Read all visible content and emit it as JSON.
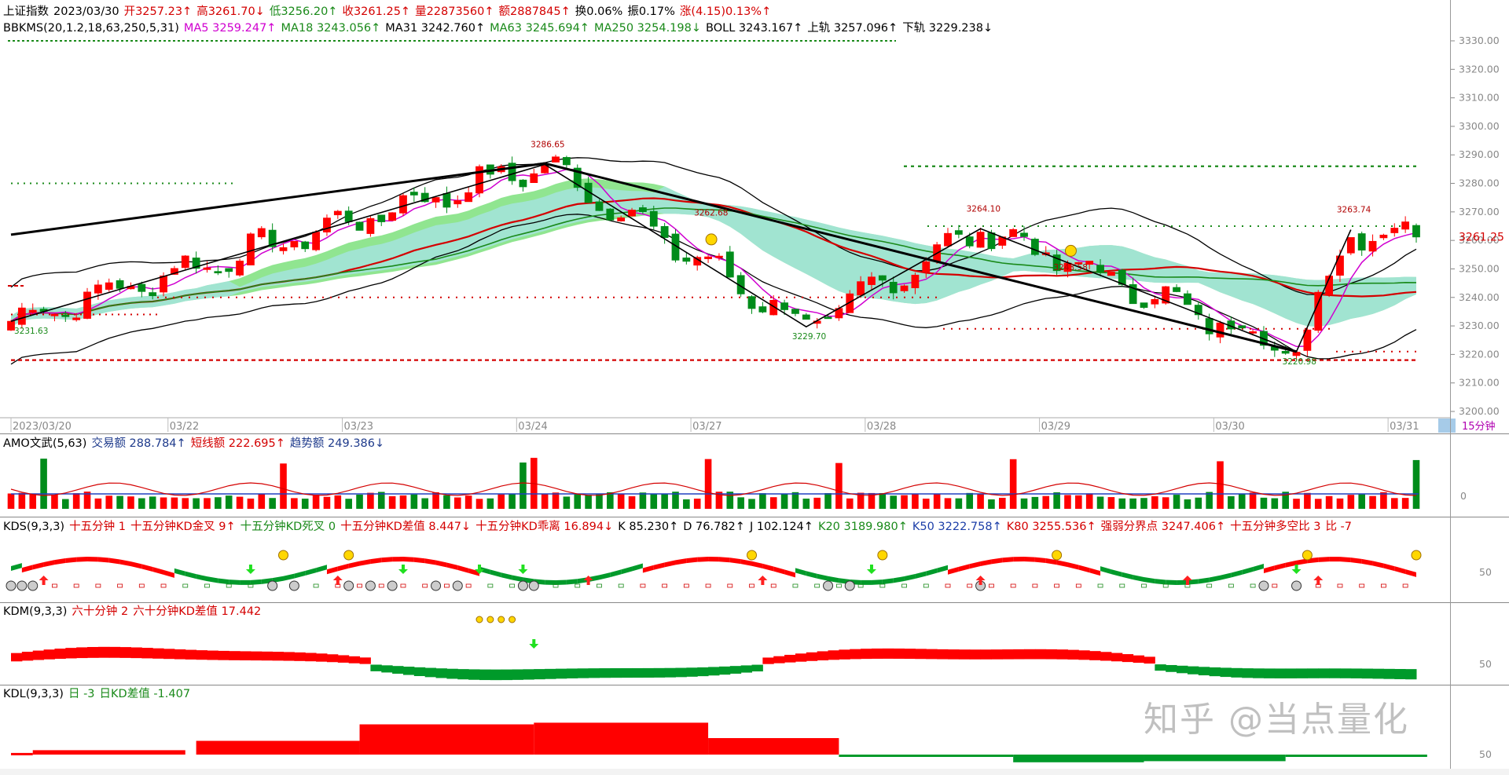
{
  "main_header": {
    "row1": [
      {
        "text": "上证指数",
        "color": "blk"
      },
      {
        "text": "2023/03/30",
        "color": "blk"
      },
      {
        "text": "开3257.23↑",
        "color": "red"
      },
      {
        "text": "高3261.70↓",
        "color": "red"
      },
      {
        "text": "低3256.20↑",
        "color": "green"
      },
      {
        "text": "收3261.25↑",
        "color": "red"
      },
      {
        "text": "量22873560↑",
        "color": "red"
      },
      {
        "text": "额2887845↑",
        "color": "red"
      },
      {
        "text": "换0.06%",
        "color": "blk"
      },
      {
        "text": "振0.17%",
        "color": "blk"
      },
      {
        "text": "涨(4.15)0.13%↑",
        "color": "red"
      }
    ],
    "row2": [
      {
        "text": "BBKMS(20,1.2,18,63,250,5,31)",
        "color": "blk"
      },
      {
        "text": "MA5 3259.247↑",
        "color": "mag"
      },
      {
        "text": "MA18 3243.056↑",
        "color": "green"
      },
      {
        "text": "MA31 3242.760↑",
        "color": "blk"
      },
      {
        "text": "MA63 3245.694↑",
        "color": "green"
      },
      {
        "text": "MA250 3254.198↓",
        "color": "green"
      },
      {
        "text": "BOLL 3243.167↑",
        "color": "blk"
      },
      {
        "text": "上轨 3257.096↑",
        "color": "blk"
      },
      {
        "text": "下轨 3229.238↓",
        "color": "blk"
      }
    ]
  },
  "amo_header": [
    {
      "text": "AMO文武(5,63)",
      "color": "blk"
    },
    {
      "text": "交易额 288.784↑",
      "color": "navy"
    },
    {
      "text": "短线额 222.695↑",
      "color": "red"
    },
    {
      "text": "趋势额 249.386↓",
      "color": "navy"
    }
  ],
  "kds_header": [
    {
      "text": "KDS(9,3,3)",
      "color": "blk"
    },
    {
      "text": "十五分钟 1",
      "color": "red"
    },
    {
      "text": "十五分钟KD金叉 9↑",
      "color": "red"
    },
    {
      "text": "十五分钟KD死叉 0",
      "color": "green"
    },
    {
      "text": "十五分钟KD差值 8.447↓",
      "color": "red"
    },
    {
      "text": "十五分钟KD乖离 16.894↓",
      "color": "red"
    },
    {
      "text": "K 85.230↑",
      "color": "blk"
    },
    {
      "text": "D 76.782↑",
      "color": "blk"
    },
    {
      "text": "J 102.124↑",
      "color": "blk"
    },
    {
      "text": "K20 3189.980↑",
      "color": "green"
    },
    {
      "text": "K50 3222.758↑",
      "color": "blue"
    },
    {
      "text": "K80 3255.536↑",
      "color": "red"
    },
    {
      "text": "强弱分界点 3247.406↑",
      "color": "red"
    },
    {
      "text": "十五分钟多空比 3",
      "color": "red"
    },
    {
      "text": "比 -7",
      "color": "red"
    }
  ],
  "kdm_header": [
    {
      "text": "KDM(9,3,3)",
      "color": "blk"
    },
    {
      "text": "六十分钟 2",
      "color": "red"
    },
    {
      "text": "六十分钟KD差值 17.442",
      "color": "red"
    }
  ],
  "kdl_header": [
    {
      "text": "KDL(9,3,3)",
      "color": "blk"
    },
    {
      "text": "日 -3",
      "color": "green"
    },
    {
      "text": "日KD差值 -1.407",
      "color": "green"
    }
  ],
  "current_price_label": "3261.25",
  "timeframe_label": "15分钟",
  "watermark": "知乎 @当点量化",
  "colors": {
    "up": "#ff0000",
    "down": "#008c1a",
    "ma5": "#d000d0",
    "cloud_green": "#7de07d",
    "cloud_cyan": "#a8e4ec",
    "boll": "#000000"
  },
  "chart_data": {
    "type": "candlestick",
    "timeframe": "15分钟",
    "y_ticks": [
      3200,
      3210,
      3220,
      3230,
      3240,
      3250,
      3260,
      3270,
      3280,
      3290,
      3300,
      3310,
      3320,
      3330
    ],
    "ylim": [
      3200,
      3334
    ],
    "date_labels": [
      "2023/03/20",
      "03/22",
      "03/23",
      "03/24",
      "03/27",
      "03/28",
      "03/29",
      "03/30",
      "03/31"
    ],
    "date_label_bar_index": [
      0,
      16,
      32,
      48,
      64,
      80,
      96,
      112,
      128
    ],
    "bars_count": 130,
    "annotations": [
      {
        "text": "3231.63",
        "bar": 0,
        "price": 3231.63
      },
      {
        "text": "3286.65",
        "bar": 49,
        "price": 3286.65
      },
      {
        "text": "3262.68",
        "bar": 64,
        "price": 3262.68
      },
      {
        "text": "3229.70",
        "bar": 73,
        "price": 3229.7
      },
      {
        "text": "3264.10",
        "bar": 89,
        "price": 3264.1
      },
      {
        "text": "3243.58",
        "bar": 97,
        "price": 3243.58
      },
      {
        "text": "3220.98",
        "bar": 118,
        "price": 3220.98
      },
      {
        "text": "3263.74",
        "bar": 123,
        "price": 3263.74
      }
    ],
    "zigzag_prices": [
      3231.63,
      3286.65,
      3229.7,
      3264.1,
      3220.98,
      3263.74
    ],
    "zigzag_bars": [
      0,
      49,
      73,
      89,
      118,
      123
    ],
    "last_close": 3261.25,
    "kds_y_tick": 50,
    "kdm_y_tick": 50,
    "kdl_y_tick": 50,
    "amo_y_tick": 0
  }
}
